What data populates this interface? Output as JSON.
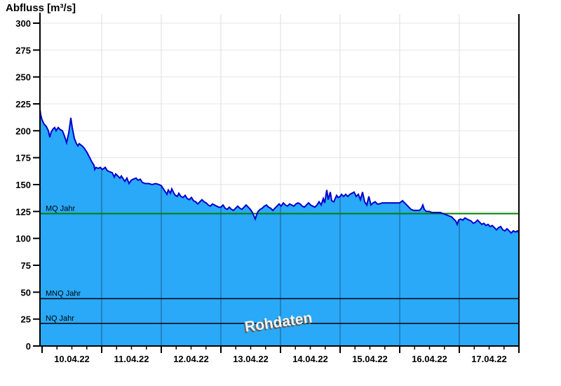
{
  "title": "Abfluss [m³/s]",
  "watermark": "Rohdaten",
  "colors": {
    "area_fill": "#29a9f8",
    "area_stroke": "#0000cc",
    "mq_line": "#008000",
    "ref_line": "#000000",
    "grid_horizontal": "#e6e6e6",
    "grid_vertical_light": "#dedede",
    "grid_vertical_on_fill": "#1f5a8c",
    "axis": "#000000"
  },
  "y_axis": {
    "min": 0,
    "max": 300,
    "tick_step": 25,
    "tick_labels": [
      "0",
      "25",
      "50",
      "75",
      "100",
      "125",
      "150",
      "175",
      "200",
      "225",
      "250",
      "275",
      "300"
    ]
  },
  "x_axis": {
    "tick_labels": [
      "10.04.22",
      "11.04.22",
      "12.04.22",
      "13.04.22",
      "14.04.22",
      "15.04.22",
      "16.04.22",
      "17.04.22"
    ],
    "days": 8,
    "minor_ticks_per_day": 4
  },
  "reference_lines": [
    {
      "label": "MQ Jahr",
      "value": 123,
      "color_key": "mq_line",
      "width": 2
    },
    {
      "label": "MNQ Jahr",
      "value": 44,
      "color_key": "ref_line",
      "width": 1.5
    },
    {
      "label": "NQ Jahr",
      "value": 21,
      "color_key": "ref_line",
      "width": 1.5
    }
  ],
  "chart_data": {
    "type": "area",
    "title": "Abfluss [m³/s]",
    "ylabel": "Abfluss [m³/s]",
    "xlabel": "",
    "ylim": [
      0,
      300
    ],
    "xlim": [
      -0.035,
      8
    ],
    "x_unit": "days since 10.04.22 00:00",
    "grid": true,
    "series": [
      {
        "name": "Abfluss Rohdaten",
        "unit": "m³/s",
        "points": [
          [
            -0.035,
            220
          ],
          [
            -0.024,
            215
          ],
          [
            0,
            210
          ],
          [
            0.035,
            206
          ],
          [
            0.071,
            204
          ],
          [
            0.106,
            200
          ],
          [
            0.129,
            194
          ],
          [
            0.153,
            199
          ],
          [
            0.188,
            202
          ],
          [
            0.212,
            203
          ],
          [
            0.235,
            200
          ],
          [
            0.271,
            203
          ],
          [
            0.306,
            201
          ],
          [
            0.341,
            200
          ],
          [
            0.376,
            195
          ],
          [
            0.412,
            189
          ],
          [
            0.447,
            198
          ],
          [
            0.471,
            207
          ],
          [
            0.482,
            212
          ],
          [
            0.506,
            203
          ],
          [
            0.541,
            193
          ],
          [
            0.576,
            188
          ],
          [
            0.6,
            186
          ],
          [
            0.624,
            188
          ],
          [
            0.647,
            187
          ],
          [
            0.671,
            186
          ],
          [
            0.706,
            184
          ],
          [
            0.753,
            180
          ],
          [
            0.8,
            175
          ],
          [
            0.835,
            171
          ],
          [
            0.871,
            168
          ],
          [
            0.882,
            164
          ],
          [
            0.906,
            166
          ],
          [
            0.941,
            165
          ],
          [
            0.976,
            166
          ],
          [
            1.012,
            164
          ],
          [
            1.059,
            166
          ],
          [
            1.094,
            163
          ],
          [
            1.129,
            162
          ],
          [
            1.176,
            161
          ],
          [
            1.212,
            157
          ],
          [
            1.235,
            160
          ],
          [
            1.271,
            158
          ],
          [
            1.306,
            156
          ],
          [
            1.329,
            158
          ],
          [
            1.365,
            155
          ],
          [
            1.388,
            153
          ],
          [
            1.424,
            156
          ],
          [
            1.459,
            151
          ],
          [
            1.494,
            154
          ],
          [
            1.529,
            155
          ],
          [
            1.576,
            156
          ],
          [
            1.612,
            154
          ],
          [
            1.647,
            155
          ],
          [
            1.682,
            152
          ],
          [
            1.729,
            151
          ],
          [
            1.788,
            151
          ],
          [
            1.847,
            150
          ],
          [
            1.906,
            151
          ],
          [
            1.965,
            150
          ],
          [
            2,
            149
          ],
          [
            2.035,
            146
          ],
          [
            2.071,
            143
          ],
          [
            2.094,
            141
          ],
          [
            2.118,
            145
          ],
          [
            2.153,
            142
          ],
          [
            2.176,
            146
          ],
          [
            2.212,
            142
          ],
          [
            2.235,
            140
          ],
          [
            2.271,
            139
          ],
          [
            2.294,
            142
          ],
          [
            2.329,
            139
          ],
          [
            2.365,
            138
          ],
          [
            2.4,
            140
          ],
          [
            2.435,
            137
          ],
          [
            2.471,
            136
          ],
          [
            2.506,
            138
          ],
          [
            2.541,
            135
          ],
          [
            2.576,
            134
          ],
          [
            2.612,
            132
          ],
          [
            2.647,
            134
          ],
          [
            2.682,
            136
          ],
          [
            2.718,
            134
          ],
          [
            2.753,
            133
          ],
          [
            2.788,
            131
          ],
          [
            2.824,
            130
          ],
          [
            2.859,
            132
          ],
          [
            2.894,
            131
          ],
          [
            2.929,
            130
          ],
          [
            2.965,
            129
          ],
          [
            3,
            129
          ],
          [
            3.035,
            131
          ],
          [
            3.071,
            128
          ],
          [
            3.106,
            127
          ],
          [
            3.141,
            129
          ],
          [
            3.176,
            127
          ],
          [
            3.212,
            126
          ],
          [
            3.247,
            128
          ],
          [
            3.282,
            130
          ],
          [
            3.318,
            128
          ],
          [
            3.353,
            127
          ],
          [
            3.388,
            129
          ],
          [
            3.424,
            131
          ],
          [
            3.459,
            129
          ],
          [
            3.494,
            127
          ],
          [
            3.529,
            124
          ],
          [
            3.553,
            121
          ],
          [
            3.576,
            118
          ],
          [
            3.6,
            122
          ],
          [
            3.624,
            125
          ],
          [
            3.659,
            127
          ],
          [
            3.694,
            128
          ],
          [
            3.729,
            130
          ],
          [
            3.765,
            131
          ],
          [
            3.8,
            129
          ],
          [
            3.835,
            128
          ],
          [
            3.871,
            126
          ],
          [
            3.906,
            128
          ],
          [
            3.941,
            130
          ],
          [
            3.976,
            132
          ],
          [
            4.012,
            130
          ],
          [
            4.047,
            133
          ],
          [
            4.082,
            131
          ],
          [
            4.118,
            130
          ],
          [
            4.153,
            132
          ],
          [
            4.188,
            131
          ],
          [
            4.224,
            130
          ],
          [
            4.259,
            132
          ],
          [
            4.294,
            133
          ],
          [
            4.329,
            132
          ],
          [
            4.365,
            130
          ],
          [
            4.4,
            129
          ],
          [
            4.435,
            131
          ],
          [
            4.471,
            133
          ],
          [
            4.506,
            131
          ],
          [
            4.541,
            130
          ],
          [
            4.576,
            129
          ],
          [
            4.612,
            131
          ],
          [
            4.647,
            134
          ],
          [
            4.682,
            131
          ],
          [
            4.718,
            137
          ],
          [
            4.741,
            133
          ],
          [
            4.776,
            145
          ],
          [
            4.8,
            136
          ],
          [
            4.835,
            143
          ],
          [
            4.859,
            135
          ],
          [
            4.894,
            134
          ],
          [
            4.918,
            137
          ],
          [
            4.941,
            140
          ],
          [
            4.965,
            138
          ],
          [
            5,
            139
          ],
          [
            5.024,
            141
          ],
          [
            5.059,
            139
          ],
          [
            5.094,
            141
          ],
          [
            5.129,
            139
          ],
          [
            5.165,
            141
          ],
          [
            5.2,
            142
          ],
          [
            5.235,
            143
          ],
          [
            5.271,
            139
          ],
          [
            5.306,
            141
          ],
          [
            5.341,
            136
          ],
          [
            5.376,
            143
          ],
          [
            5.412,
            134
          ],
          [
            5.447,
            131
          ],
          [
            5.482,
            139
          ],
          [
            5.518,
            131
          ],
          [
            5.553,
            133
          ],
          [
            5.588,
            134
          ],
          [
            5.624,
            132
          ],
          [
            5.659,
            132
          ],
          [
            5.706,
            133
          ],
          [
            5.765,
            133
          ],
          [
            5.824,
            133
          ],
          [
            5.882,
            133
          ],
          [
            5.941,
            133
          ],
          [
            6,
            133
          ],
          [
            6.047,
            135
          ],
          [
            6.082,
            133
          ],
          [
            6.118,
            131
          ],
          [
            6.153,
            129
          ],
          [
            6.188,
            127
          ],
          [
            6.235,
            126
          ],
          [
            6.282,
            126
          ],
          [
            6.329,
            126
          ],
          [
            6.365,
            128
          ],
          [
            6.388,
            131
          ],
          [
            6.412,
            127
          ],
          [
            6.447,
            125
          ],
          [
            6.494,
            125
          ],
          [
            6.541,
            124
          ],
          [
            6.588,
            124
          ],
          [
            6.635,
            124
          ],
          [
            6.682,
            124
          ],
          [
            6.729,
            123
          ],
          [
            6.776,
            122
          ],
          [
            6.824,
            121
          ],
          [
            6.871,
            120
          ],
          [
            6.906,
            118
          ],
          [
            6.941,
            116
          ],
          [
            6.965,
            113
          ],
          [
            6.988,
            117
          ],
          [
            7.024,
            118
          ],
          [
            7.059,
            117
          ],
          [
            7.094,
            119
          ],
          [
            7.129,
            118
          ],
          [
            7.165,
            117
          ],
          [
            7.2,
            116
          ],
          [
            7.235,
            114
          ],
          [
            7.271,
            115
          ],
          [
            7.306,
            117
          ],
          [
            7.341,
            115
          ],
          [
            7.376,
            113
          ],
          [
            7.412,
            114
          ],
          [
            7.447,
            112
          ],
          [
            7.482,
            113
          ],
          [
            7.518,
            111
          ],
          [
            7.553,
            112
          ],
          [
            7.588,
            110
          ],
          [
            7.624,
            108
          ],
          [
            7.659,
            110
          ],
          [
            7.694,
            111
          ],
          [
            7.729,
            108
          ],
          [
            7.765,
            107
          ],
          [
            7.8,
            109
          ],
          [
            7.835,
            107
          ],
          [
            7.871,
            105
          ],
          [
            7.906,
            107
          ],
          [
            7.941,
            106
          ],
          [
            7.976,
            107
          ],
          [
            8,
            105
          ]
        ]
      }
    ]
  }
}
